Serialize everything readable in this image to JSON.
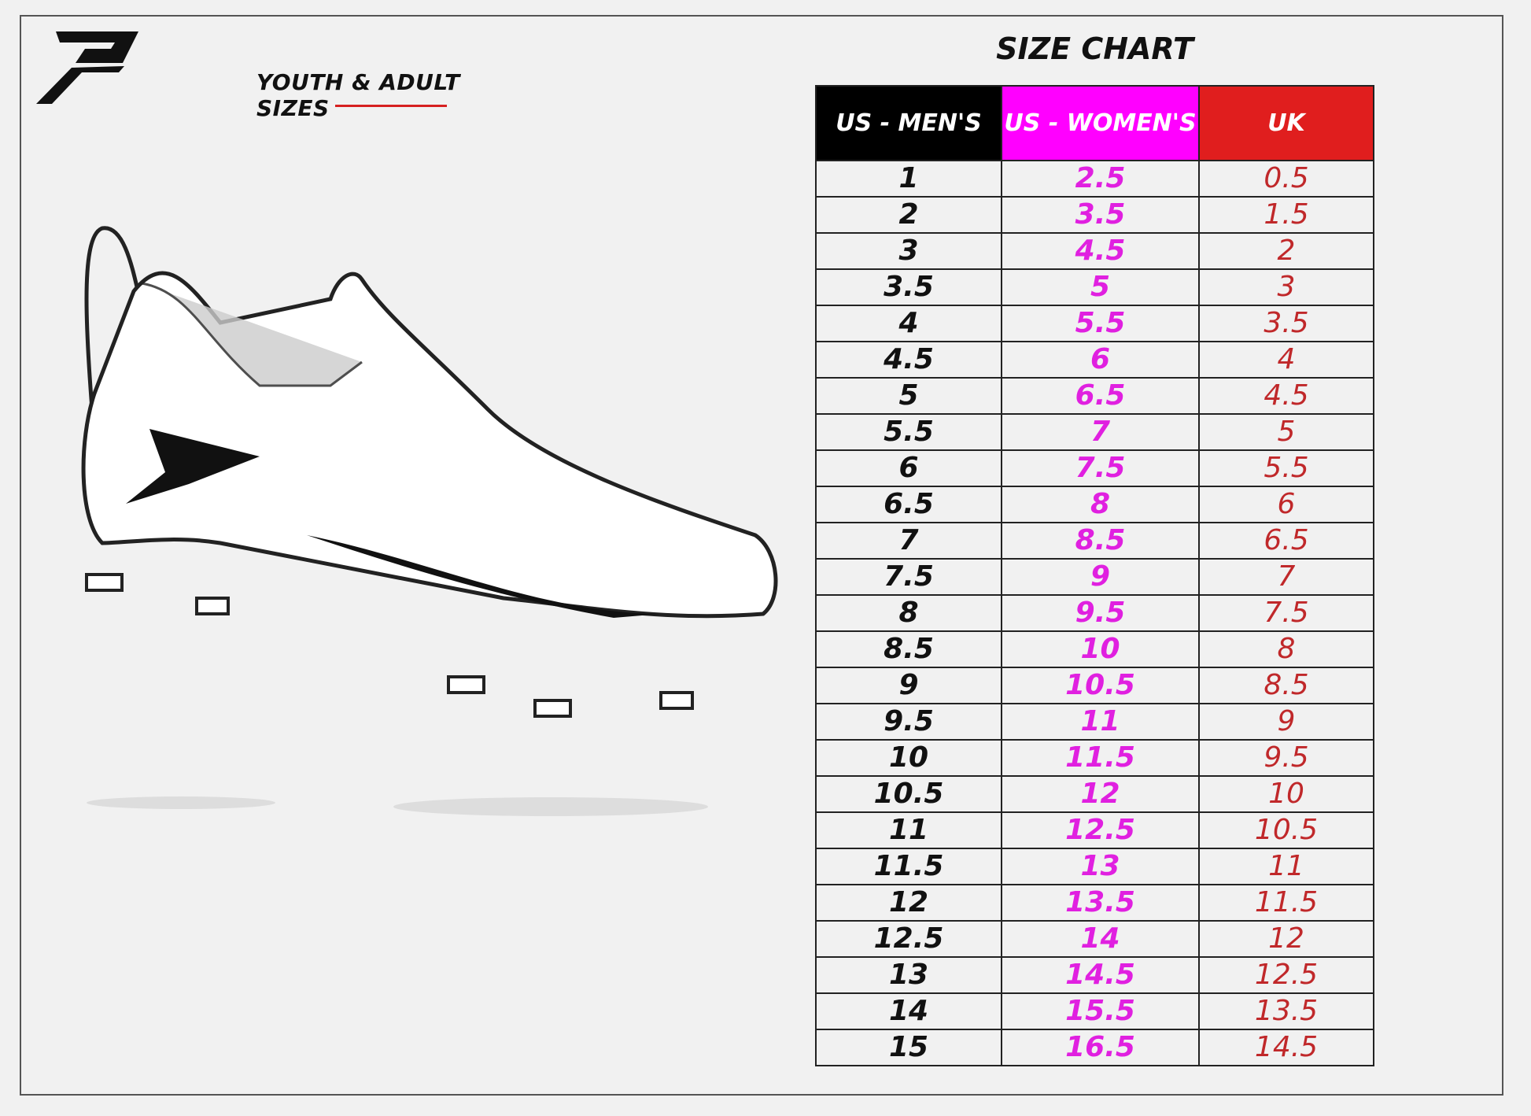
{
  "header": {
    "subtitle": "YOUTH & ADULT SIZES",
    "title": "SIZE CHART"
  },
  "colors": {
    "men": "#000000",
    "women": "#ff00ff",
    "uk": "#e01e1e"
  },
  "table": {
    "columns": [
      "US - MEN'S",
      "US - WOMEN'S",
      "UK"
    ],
    "rows": [
      [
        "1",
        "2.5",
        "0.5"
      ],
      [
        "2",
        "3.5",
        "1.5"
      ],
      [
        "3",
        "4.5",
        "2"
      ],
      [
        "3.5",
        "5",
        "3"
      ],
      [
        "4",
        "5.5",
        "3.5"
      ],
      [
        "4.5",
        "6",
        "4"
      ],
      [
        "5",
        "6.5",
        "4.5"
      ],
      [
        "5.5",
        "7",
        "5"
      ],
      [
        "6",
        "7.5",
        "5.5"
      ],
      [
        "6.5",
        "8",
        "6"
      ],
      [
        "7",
        "8.5",
        "6.5"
      ],
      [
        "7.5",
        "9",
        "7"
      ],
      [
        "8",
        "9.5",
        "7.5"
      ],
      [
        "8.5",
        "10",
        "8"
      ],
      [
        "9",
        "10.5",
        "8.5"
      ],
      [
        "9.5",
        "11",
        "9"
      ],
      [
        "10",
        "11.5",
        "9.5"
      ],
      [
        "10.5",
        "12",
        "10"
      ],
      [
        "11",
        "12.5",
        "10.5"
      ],
      [
        "11.5",
        "13",
        "11"
      ],
      [
        "12",
        "13.5",
        "11.5"
      ],
      [
        "12.5",
        "14",
        "12"
      ],
      [
        "13",
        "14.5",
        "12.5"
      ],
      [
        "14",
        "15.5",
        "13.5"
      ],
      [
        "15",
        "16.5",
        "14.5"
      ]
    ]
  }
}
